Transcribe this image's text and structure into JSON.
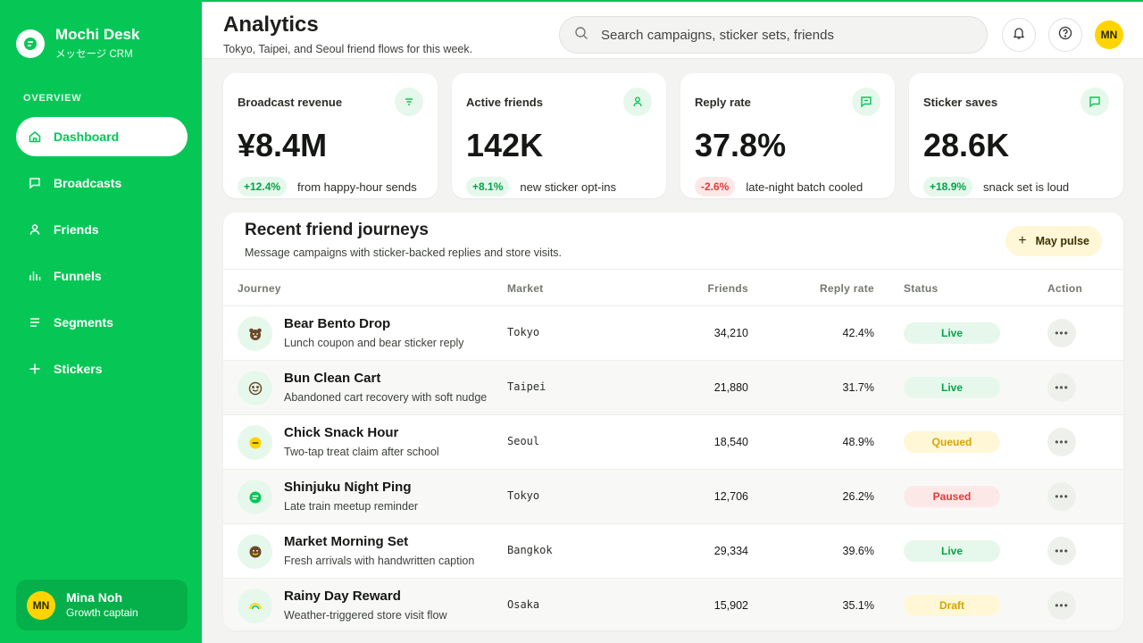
{
  "app": {
    "name": "Mochi Desk",
    "subtitle": "メッセージ CRM",
    "accent": "#06c755"
  },
  "sidebar": {
    "section_label": "OVERVIEW",
    "items": [
      {
        "label": "Dashboard",
        "icon": "home-icon",
        "active": true
      },
      {
        "label": "Broadcasts",
        "icon": "message-icon",
        "active": false
      },
      {
        "label": "Friends",
        "icon": "user-icon",
        "active": false
      },
      {
        "label": "Funnels",
        "icon": "bar-chart-icon",
        "active": false
      },
      {
        "label": "Segments",
        "icon": "list-icon",
        "active": false
      },
      {
        "label": "Stickers",
        "icon": "plus-icon",
        "active": false
      }
    ],
    "user": {
      "initials": "MN",
      "name": "Mina Noh",
      "role": "Growth captain"
    }
  },
  "header": {
    "title": "Analytics",
    "subtitle": "Tokyo, Taipei, and Seoul friend flows for this week.",
    "search_placeholder": "Search campaigns, sticker sets, friends",
    "avatar_initials": "MN"
  },
  "stats": [
    {
      "label": "Broadcast revenue",
      "value": "¥8.4M",
      "change": "+12.4%",
      "trend": "up",
      "note": "from happy-hour sends",
      "icon": "filter-icon"
    },
    {
      "label": "Active friends",
      "value": "142K",
      "change": "+8.1%",
      "trend": "up",
      "note": "new sticker opt-ins",
      "icon": "user-icon"
    },
    {
      "label": "Reply rate",
      "value": "37.8%",
      "change": "-2.6%",
      "trend": "down",
      "note": "late-night batch cooled",
      "icon": "message-icon"
    },
    {
      "label": "Sticker saves",
      "value": "28.6K",
      "change": "+18.9%",
      "trend": "up",
      "note": "snack set is loud",
      "icon": "sticker-icon"
    }
  ],
  "journeys": {
    "title": "Recent friend journeys",
    "subtitle": "Message campaigns with sticker-backed replies and store visits.",
    "action_label": "May pulse",
    "columns": {
      "journey": "Journey",
      "market": "Market",
      "friends": "Friends",
      "reply": "Reply rate",
      "status": "Status",
      "action": "Action"
    },
    "rows": [
      {
        "name": "Bear Bento Drop",
        "desc": "Lunch coupon and bear sticker reply",
        "market": "Tokyo",
        "friends": "34,210",
        "reply": "42.4%",
        "status": "Live",
        "status_kind": "live",
        "icon": "bear-icon"
      },
      {
        "name": "Bun Clean Cart",
        "desc": "Abandoned cart recovery with soft nudge",
        "market": "Taipei",
        "friends": "21,880",
        "reply": "31.7%",
        "status": "Live",
        "status_kind": "live",
        "icon": "bun-icon"
      },
      {
        "name": "Chick Snack Hour",
        "desc": "Two-tap treat claim after school",
        "market": "Seoul",
        "friends": "18,540",
        "reply": "48.9%",
        "status": "Queued",
        "status_kind": "queued",
        "icon": "chick-icon"
      },
      {
        "name": "Shinjuku Night Ping",
        "desc": "Late train meetup reminder",
        "market": "Tokyo",
        "friends": "12,706",
        "reply": "26.2%",
        "status": "Paused",
        "status_kind": "paused",
        "icon": "chat-bubble-icon"
      },
      {
        "name": "Market Morning Set",
        "desc": "Fresh arrivals with handwritten caption",
        "market": "Bangkok",
        "friends": "29,334",
        "reply": "39.6%",
        "status": "Live",
        "status_kind": "live",
        "icon": "smiley-icon"
      },
      {
        "name": "Rainy Day Reward",
        "desc": "Weather-triggered store visit flow",
        "market": "Osaka",
        "friends": "15,902",
        "reply": "35.1%",
        "status": "Draft",
        "status_kind": "draft",
        "icon": "rainbow-icon"
      }
    ]
  }
}
